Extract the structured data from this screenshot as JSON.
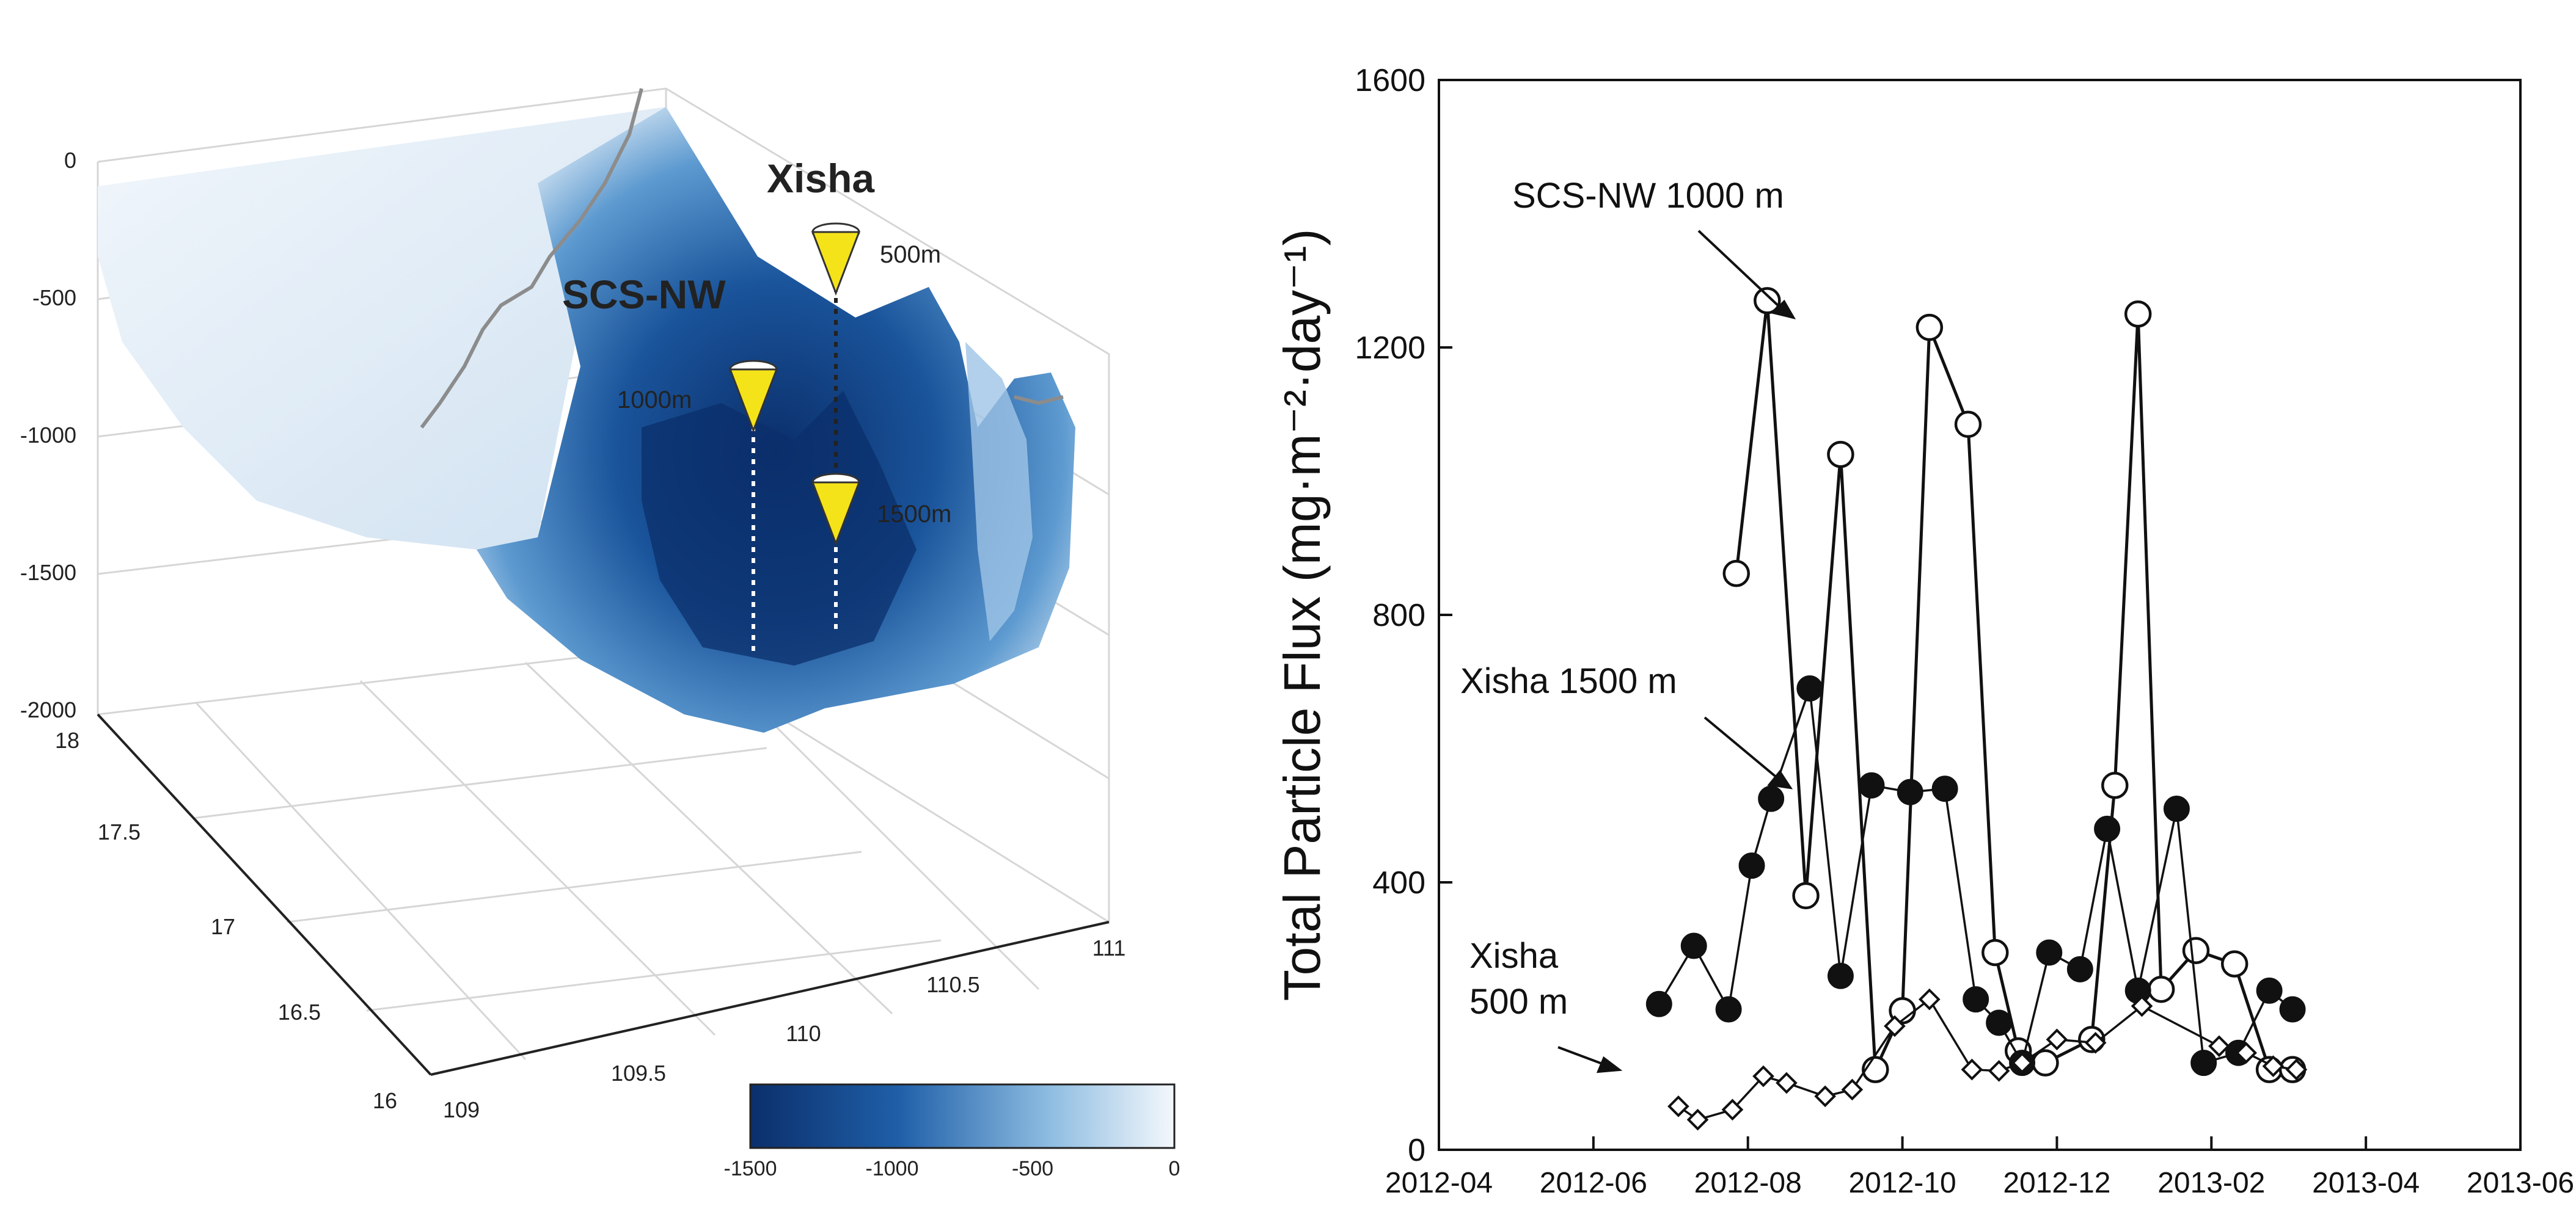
{
  "left_panel": {
    "z_ticks": [
      "0",
      "-500",
      "-1000",
      "-1500",
      "-2000"
    ],
    "lat_ticks": [
      "18",
      "17.5",
      "17",
      "16.5",
      "16"
    ],
    "lon_ticks": [
      "109",
      "109.5",
      "110",
      "110.5",
      "111"
    ],
    "colorbar_ticks": [
      "-1500",
      "-1000",
      "-500",
      "0"
    ],
    "station_labels": {
      "xisha": "Xisha",
      "scs_nw": "SCS-NW"
    },
    "trap_labels": {
      "xisha_500": "500m",
      "xisha_1500": "1500m",
      "scs_1000": "1000m"
    },
    "colors": {
      "deep": "#0b2f6b",
      "mid": "#2f74b8",
      "shallow": "#dce9f5",
      "trap": "#f5e31a"
    }
  },
  "chart_data": {
    "type": "scatter",
    "ylabel": "Total Particle Flux (mg·m⁻²·day⁻¹)",
    "xlabel": "",
    "ylim": [
      0,
      1600
    ],
    "xlim": [
      "2012-04",
      "2013-06"
    ],
    "y_ticks": [
      "0",
      "400",
      "800",
      "1200",
      "1600"
    ],
    "x_ticks": [
      "2012-04",
      "2012-06",
      "2012-08",
      "2012-10",
      "2012-12",
      "2013-02",
      "2013-04",
      "2013-06"
    ],
    "series": [
      {
        "name": "SCS-NW 1000 m",
        "marker": "open-circle",
        "x": [
          3.85,
          4.25,
          4.75,
          5.2,
          5.65,
          6.0,
          6.35,
          6.85,
          7.2,
          7.5,
          7.85,
          8.45,
          8.75,
          9.05,
          9.35,
          9.8,
          10.3,
          10.75,
          11.05
        ],
        "values": [
          862,
          1270,
          380,
          1040,
          120,
          208,
          1230,
          1085,
          295,
          148,
          130,
          165,
          545,
          1250,
          240,
          298,
          278,
          120,
          120
        ]
      },
      {
        "name": "Xisha 1500 m",
        "marker": "filled-circle",
        "x": [
          2.85,
          3.3,
          3.75,
          4.05,
          4.3,
          4.8,
          5.2,
          5.6,
          6.1,
          6.55,
          6.95,
          7.25,
          7.55,
          7.9,
          8.3,
          8.65,
          9.05,
          9.55,
          9.9,
          10.35,
          10.75,
          11.05
        ],
        "values": [
          218,
          305,
          210,
          425,
          525,
          690,
          260,
          545,
          535,
          540,
          225,
          190,
          130,
          295,
          270,
          480,
          238,
          510,
          130,
          145,
          238,
          210
        ]
      },
      {
        "name": "Xisha 500 m",
        "marker": "open-diamond",
        "x": [
          3.1,
          3.35,
          3.8,
          4.2,
          4.5,
          5.0,
          5.35,
          5.9,
          6.35,
          6.9,
          7.25,
          7.55,
          8.0,
          8.5,
          9.1,
          10.1,
          10.45,
          10.8,
          11.1
        ],
        "values": [
          65,
          45,
          60,
          110,
          100,
          80,
          90,
          185,
          225,
          120,
          118,
          130,
          165,
          160,
          215,
          155,
          145,
          125,
          120
        ]
      }
    ],
    "annotations": {
      "scs_nw": "SCS-NW 1000 m",
      "xisha1500": "Xisha 1500 m",
      "xisha500_line1": "Xisha",
      "xisha500_line2": "500 m"
    }
  }
}
